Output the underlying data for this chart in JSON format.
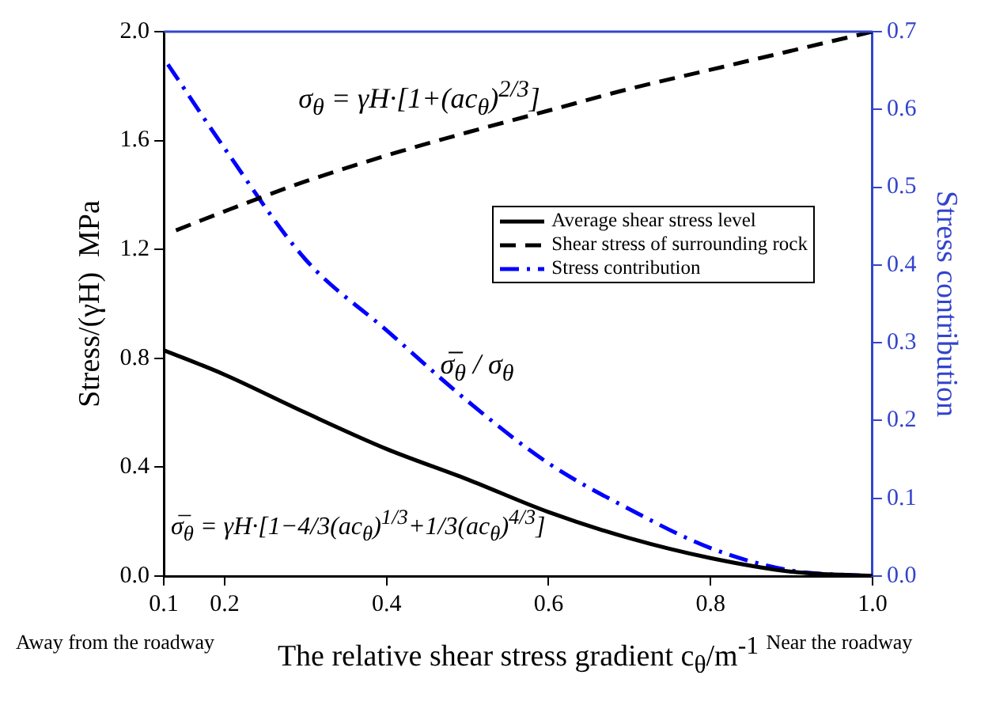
{
  "chart_data": {
    "type": "line",
    "xlabel": "The relative shear stress gradient c$_{θ}$/m$^{-1}$",
    "ylabel": "Stress/(γH)  MPa",
    "y2label": "Stress contribution",
    "xlim": [
      0.125,
      1.0
    ],
    "xticks": [
      {
        "value": 0.125,
        "label": "0.1"
      },
      0.2,
      0.4,
      0.6,
      0.8,
      {
        "value": 1,
        "label": "1.0"
      }
    ],
    "ylim": [
      0,
      2.0
    ],
    "yticks": [
      {
        "value": 0,
        "label": "0.0"
      },
      0.4,
      0.8,
      1.2,
      1.6,
      {
        "value": 2,
        "label": "2.0"
      }
    ],
    "y2lim": [
      0,
      0.7
    ],
    "y2ticks": [
      {
        "value": 0,
        "label": "0.0"
      },
      0.1,
      0.2,
      0.3,
      0.4,
      0.5,
      0.6,
      0.7
    ],
    "grid": false,
    "legend": "right",
    "marker": "none",
    "series": [
      {
        "name": "Average shear stress level",
        "color": "#000000",
        "line_style": "solid",
        "x": [
          0.125,
          0.2,
          0.3,
          0.4,
          0.5,
          0.6,
          0.7,
          0.8,
          0.9,
          1.0
        ],
        "values": [
          0.83,
          0.74,
          0.6,
          0.467,
          0.355,
          0.235,
          0.139,
          0.066,
          0.016,
          0
        ]
      },
      {
        "name": "Shear stress of surrounding rock",
        "color": "#000000",
        "line_style": "dashed",
        "x": [
          0.14,
          0.2,
          0.3,
          0.4,
          0.5,
          0.6,
          0.7,
          0.8,
          0.9,
          1.0
        ],
        "values": [
          1.27,
          1.34,
          1.45,
          1.545,
          1.63,
          1.71,
          1.79,
          1.86,
          1.93,
          2.0
        ]
      },
      {
        "name": "Stress contribution",
        "color": "#0000ff",
        "line_style": "dashdot",
        "axis": "y2",
        "x": [
          0.13,
          0.2,
          0.3,
          0.4,
          0.5,
          0.6,
          0.7,
          0.8,
          0.9,
          1.0
        ],
        "values": [
          0.658,
          0.55,
          0.407,
          0.316,
          0.225,
          0.145,
          0.086,
          0.036,
          0.007,
          0
        ]
      }
    ],
    "annotations": [
      "σ$_{θ}$ = γH·[1+(ac$_{θ}$)$^{2/3}$]",
      "σ̅$_{θ}$ / σ$_{θ}$",
      "σ̅$_{θ}$ = γH·[1−4/3(ac$_{θ}$)$^{1/3}$+1/3(ac$_{θ}$)$^{4/3}$]",
      "Away from the roadway",
      "Near the roadway"
    ]
  }
}
